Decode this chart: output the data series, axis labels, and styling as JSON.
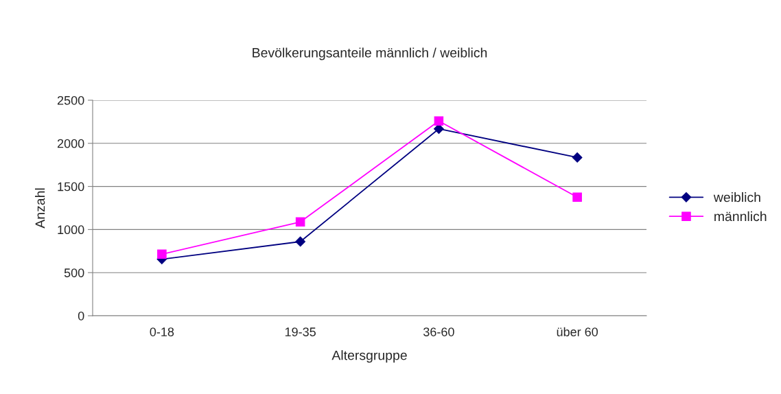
{
  "chart_data": {
    "type": "line",
    "title": "Bevölkerungsanteile männlich / weiblich",
    "xlabel": "Altersgruppe",
    "ylabel": "Anzahl",
    "categories": [
      "0-18",
      "19-35",
      "36-60",
      "über 60"
    ],
    "series": [
      {
        "name": "weiblich",
        "color": "#000080",
        "marker": "diamond",
        "values": [
          656,
          860,
          2168,
          1836
        ]
      },
      {
        "name": "männlich",
        "color": "#ff00ff",
        "marker": "square",
        "values": [
          714,
          1088,
          2259,
          1375
        ]
      }
    ],
    "ylim": [
      0,
      2500
    ],
    "yticks": [
      0,
      500,
      1000,
      1500,
      2000,
      2500
    ],
    "grid": "y",
    "legend": "right",
    "line_style": "solid"
  }
}
